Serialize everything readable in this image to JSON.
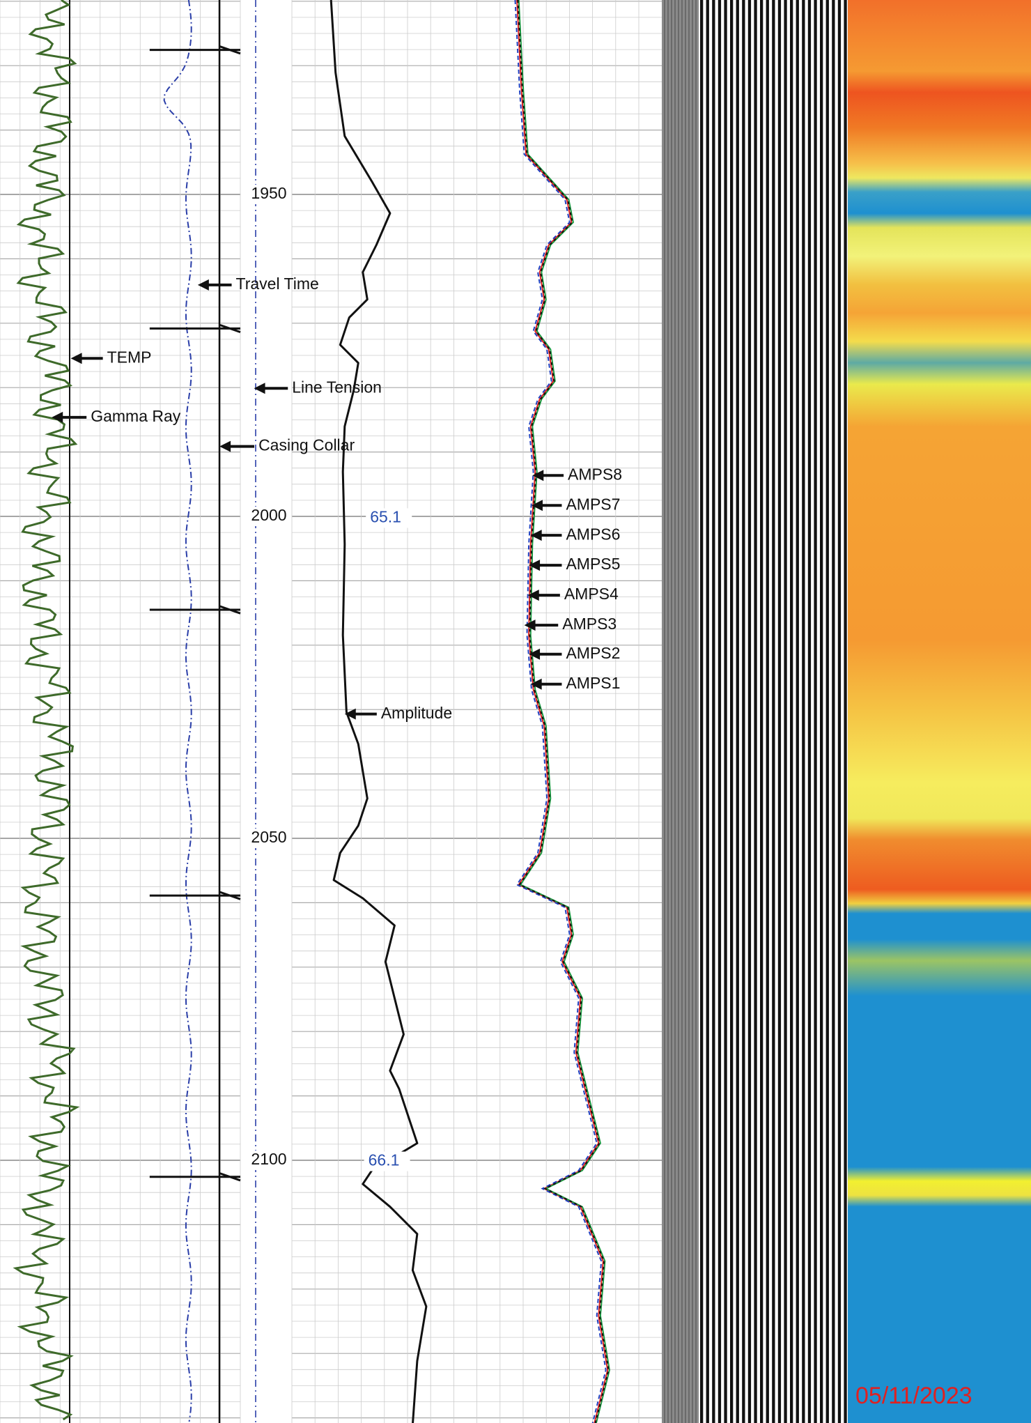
{
  "depth_labels": [
    1950,
    2000,
    2050,
    2100
  ],
  "annotations": [
    "Travel Time",
    "TEMP",
    "Line Tension",
    "Gamma Ray",
    "Casing Collar",
    "Amplitude",
    "AMPS8",
    "AMPS7",
    "AMPS6",
    "AMPS5",
    "AMPS4",
    "AMPS3",
    "AMPS2",
    "AMPS1"
  ],
  "amplitude_labels": [
    "65.1",
    "66.1"
  ],
  "date": "05/11/2023"
}
